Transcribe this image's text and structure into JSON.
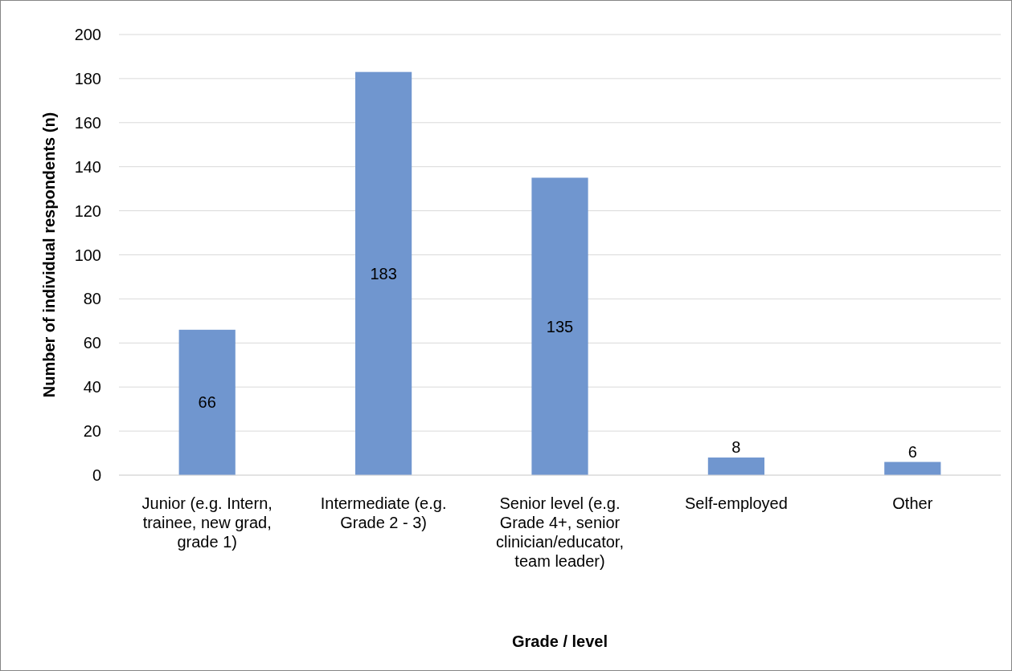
{
  "chart_data": {
    "type": "bar",
    "xlabel": "Grade / level",
    "ylabel": "Number of individual respondents (n)",
    "categories": [
      "Junior (e.g. Intern, trainee, new grad, grade 1)",
      "Intermediate (e.g. Grade 2 - 3)",
      "Senior level (e.g. Grade 4+, senior clinician/educator, team leader)",
      "Self-employed",
      "Other"
    ],
    "values": [
      66,
      183,
      135,
      8,
      6
    ],
    "color": "#7096cf",
    "ylim": [
      0,
      200
    ],
    "yticks": [
      0,
      20,
      40,
      60,
      80,
      100,
      120,
      140,
      160,
      180,
      200
    ],
    "grid": "y",
    "data_labels": true
  }
}
